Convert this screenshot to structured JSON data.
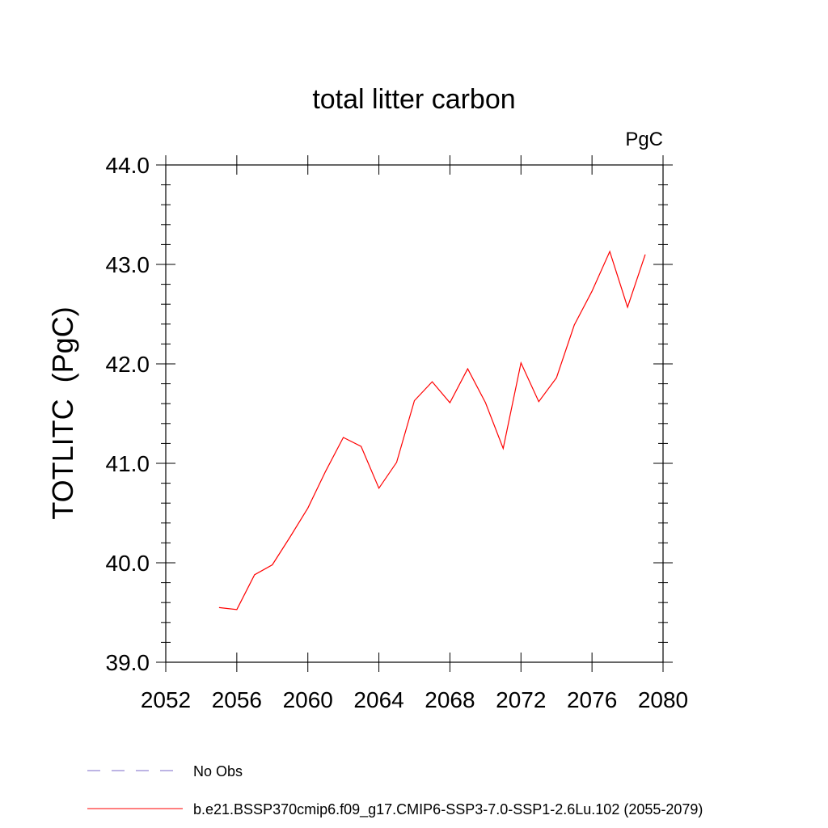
{
  "chart_data": {
    "type": "line",
    "title": "total litter carbon",
    "units": "PgC",
    "ylabel": "TOTLITC  (PgC)",
    "xlabel": "",
    "xlim": [
      2052,
      2080
    ],
    "ylim": [
      39.0,
      44.0
    ],
    "x_ticks": [
      2052,
      2056,
      2060,
      2064,
      2068,
      2072,
      2076,
      2080
    ],
    "x_tick_labels": [
      "2052",
      "2056",
      "2060",
      "2064",
      "2068",
      "2072",
      "2076",
      "2080"
    ],
    "y_ticks": [
      39.0,
      40.0,
      41.0,
      42.0,
      43.0,
      44.0
    ],
    "y_tick_labels": [
      "39.0",
      "40.0",
      "41.0",
      "42.0",
      "43.0",
      "44.0"
    ],
    "grid": false,
    "legend_position": "bottom",
    "series": [
      {
        "name": "b.e21.BSSP370cmip6.f09_g17.CMIP6-SSP3-7.0-SSP1-2.6Lu.102 (2055-2079)",
        "color": "#ff0000",
        "x": [
          2055,
          2056,
          2057,
          2058,
          2059,
          2060,
          2061,
          2062,
          2063,
          2064,
          2065,
          2066,
          2067,
          2068,
          2069,
          2070,
          2071,
          2072,
          2073,
          2074,
          2075,
          2076,
          2077,
          2078,
          2079
        ],
        "y": [
          39.55,
          39.53,
          39.88,
          39.98,
          40.26,
          40.55,
          40.92,
          41.26,
          41.17,
          40.75,
          41.01,
          41.63,
          41.82,
          41.61,
          41.95,
          41.61,
          41.15,
          42.01,
          41.62,
          41.86,
          42.39,
          42.73,
          43.13,
          42.57,
          43.1
        ]
      }
    ],
    "legend": [
      {
        "label": "No Obs",
        "color": "#7b68c8",
        "style": "dashed"
      },
      {
        "label": "b.e21.BSSP370cmip6.f09_g17.CMIP6-SSP3-7.0-SSP1-2.6Lu.102 (2055-2079)",
        "color": "#ff0000",
        "style": "solid"
      }
    ]
  }
}
